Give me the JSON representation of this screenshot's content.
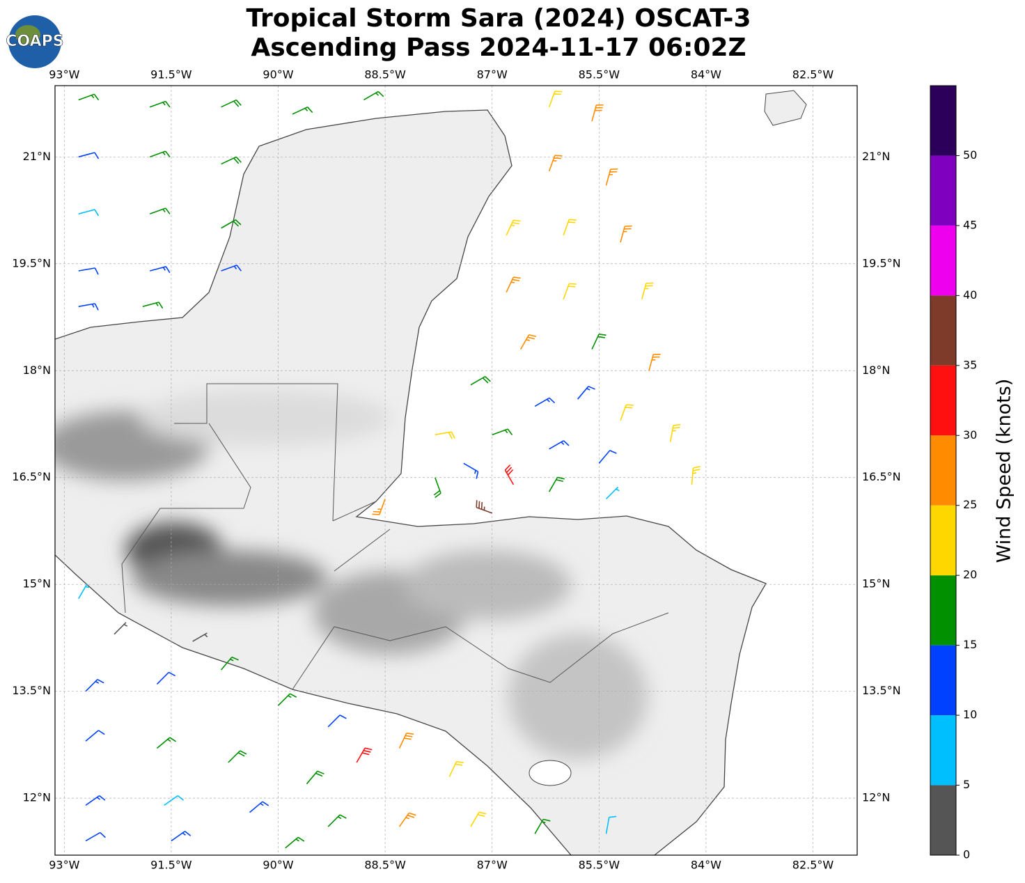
{
  "chart_data": {
    "type": "map",
    "title": [
      "Tropical Storm Sara (2024) OSCAT-3",
      "Ascending Pass 2024-11-17 06:02Z"
    ],
    "logo_text": "COAPS",
    "xlim": [
      -93.13,
      -81.88
    ],
    "ylim": [
      11.2,
      22.0
    ],
    "xticks": [
      {
        "value": -93,
        "label": "93°W"
      },
      {
        "value": -91.5,
        "label": "91.5°W"
      },
      {
        "value": -90,
        "label": "90°W"
      },
      {
        "value": -88.5,
        "label": "88.5°W"
      },
      {
        "value": -87,
        "label": "87°W"
      },
      {
        "value": -85.5,
        "label": "85.5°W"
      },
      {
        "value": -84,
        "label": "84°W"
      },
      {
        "value": -82.5,
        "label": "82.5°W"
      }
    ],
    "yticks": [
      {
        "value": 12,
        "label": "12°N"
      },
      {
        "value": 13.5,
        "label": "13.5°N"
      },
      {
        "value": 15,
        "label": "15°N"
      },
      {
        "value": 16.5,
        "label": "16.5°N"
      },
      {
        "value": 18,
        "label": "18°N"
      },
      {
        "value": 19.5,
        "label": "19.5°N"
      },
      {
        "value": 21,
        "label": "21°N"
      }
    ],
    "grid": true,
    "wind_barbs": {
      "lon": [
        -92.8,
        -91.8,
        -90.8,
        -89.8,
        -88.8,
        -92.8,
        -91.8,
        -90.8,
        -92.8,
        -91.8,
        -90.8,
        -92.8,
        -91.8,
        -90.8,
        -92.8,
        -91.9,
        -86.2,
        -85.6,
        -86.2,
        -85.4,
        -86.8,
        -86.0,
        -85.2,
        -86.8,
        -86.0,
        -84.9,
        -86.6,
        -85.6,
        -84.8,
        -84.5,
        -84.2,
        -87.3,
        -86.4,
        -85.8,
        -85.2,
        -87.8,
        -87.0,
        -86.2,
        -85.5,
        -87.8,
        -87.4,
        -86.7,
        -86.2,
        -85.4,
        -88.5,
        -87.0,
        -92.8,
        -92.3,
        -91.2,
        -92.7,
        -91.7,
        -90.8,
        -90.0,
        -89.3,
        -92.7,
        -91.7,
        -90.7,
        -89.6,
        -88.9,
        -88.3,
        -87.6,
        -92.7,
        -91.6,
        -90.4,
        -89.3,
        -88.3,
        -87.3,
        -92.7,
        -91.5,
        -89.9,
        -86.4,
        -85.4
      ],
      "lat": [
        21.8,
        21.7,
        21.7,
        21.6,
        21.8,
        21.0,
        21.0,
        20.9,
        20.2,
        20.2,
        20.0,
        19.4,
        19.4,
        19.4,
        18.9,
        18.9,
        21.7,
        21.5,
        20.8,
        20.6,
        19.9,
        19.9,
        19.8,
        19.1,
        19.0,
        19.0,
        18.3,
        18.3,
        18.0,
        17.0,
        16.4,
        17.8,
        17.5,
        17.6,
        17.3,
        17.1,
        17.1,
        16.9,
        16.7,
        16.5,
        16.7,
        16.4,
        16.3,
        16.2,
        16.2,
        16.0,
        14.8,
        14.3,
        14.2,
        13.5,
        13.6,
        13.8,
        13.3,
        13.0,
        12.8,
        12.7,
        12.5,
        12.2,
        12.5,
        12.7,
        12.3,
        11.9,
        11.9,
        11.8,
        11.6,
        11.6,
        11.6,
        11.4,
        11.4,
        11.3,
        11.5,
        11.5
      ],
      "speed": [
        16,
        17,
        18,
        17,
        16,
        12,
        17,
        18,
        8,
        17,
        18,
        12,
        13,
        13,
        13,
        16,
        22,
        28,
        27,
        27,
        23,
        22,
        27,
        27,
        22,
        23,
        27,
        18,
        27,
        23,
        23,
        18,
        13,
        13,
        22,
        22,
        16,
        13,
        12,
        18,
        13,
        32,
        18,
        7,
        25,
        37,
        7,
        3,
        3,
        13,
        11,
        17,
        17,
        12,
        12,
        17,
        18,
        18,
        32,
        28,
        22,
        13,
        9,
        13,
        17,
        27,
        22,
        12,
        13,
        17,
        17,
        8
      ],
      "direction": [
        70,
        70,
        65,
        65,
        60,
        75,
        70,
        65,
        75,
        70,
        60,
        80,
        75,
        70,
        80,
        75,
        20,
        15,
        20,
        15,
        25,
        20,
        15,
        25,
        20,
        15,
        30,
        25,
        15,
        10,
        5,
        60,
        60,
        40,
        20,
        80,
        70,
        60,
        40,
        160,
        120,
        330,
        30,
        45,
        200,
        290,
        30,
        45,
        60,
        45,
        45,
        40,
        45,
        45,
        50,
        50,
        45,
        40,
        30,
        25,
        25,
        55,
        55,
        50,
        45,
        35,
        30,
        60,
        55,
        50,
        30,
        10
      ]
    },
    "colorbar": {
      "label": "Wind Speed (knots)",
      "bounds": [
        0,
        5,
        10,
        15,
        20,
        25,
        30,
        35,
        40,
        45,
        50,
        55
      ],
      "colors": [
        "#555555",
        "#00bfff",
        "#0040ff",
        "#009000",
        "#ffd700",
        "#ff8c00",
        "#ff1010",
        "#7f3b2a",
        "#ee00ee",
        "#8000c0",
        "#2c005a"
      ],
      "ticks": [
        0,
        5,
        10,
        15,
        20,
        25,
        30,
        35,
        40,
        45,
        50
      ]
    }
  }
}
